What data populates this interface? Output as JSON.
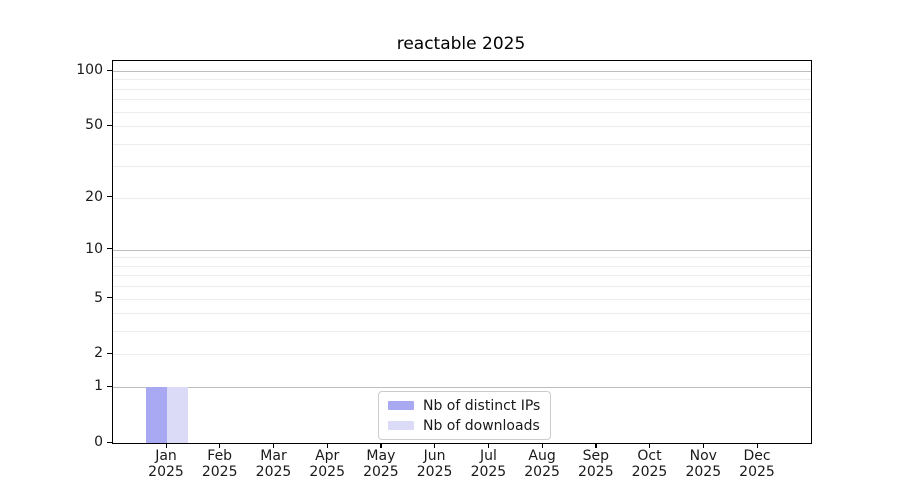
{
  "chart_data": {
    "type": "bar",
    "title": "reactable 2025",
    "categories": [
      "Jan 2025",
      "Feb 2025",
      "Mar 2025",
      "Apr 2025",
      "May 2025",
      "Jun 2025",
      "Jul 2025",
      "Aug 2025",
      "Sep 2025",
      "Oct 2025",
      "Nov 2025",
      "Dec 2025"
    ],
    "series": [
      {
        "name": "Nb of distinct IPs",
        "color": "#a9a9f3",
        "values": [
          1,
          0,
          0,
          0,
          0,
          0,
          0,
          0,
          0,
          0,
          0,
          0
        ]
      },
      {
        "name": "Nb of downloads",
        "color": "#dbdbf8",
        "values": [
          1,
          0,
          0,
          0,
          0,
          0,
          0,
          0,
          0,
          0,
          0,
          0
        ]
      }
    ],
    "xlabel": "",
    "ylabel": "",
    "y_scale": "log1p",
    "ylim": [
      0,
      100
    ],
    "y_tick_values": [
      0,
      1,
      2,
      5,
      10,
      20,
      50,
      100
    ],
    "y_tick_labels": [
      "0",
      "1",
      "2",
      "5",
      "10",
      "20",
      "50",
      "100"
    ],
    "y_gridlines_major": [
      1,
      10,
      100
    ],
    "y_gridlines_minor": [
      2,
      3,
      4,
      5,
      6,
      7,
      8,
      9,
      20,
      30,
      40,
      50,
      60,
      70,
      80,
      90
    ],
    "grid": true,
    "legend_position": "lower center"
  }
}
